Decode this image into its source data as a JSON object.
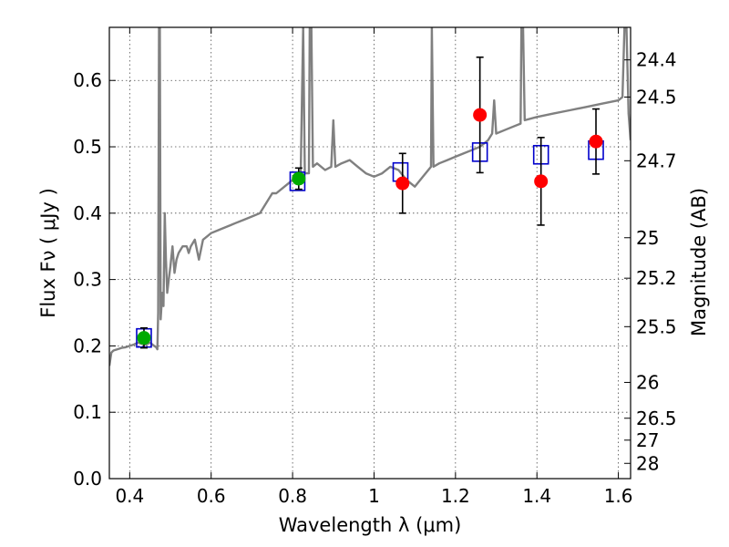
{
  "chart_data": {
    "type": "scatter",
    "xlabel": "Wavelength  λ (μm)",
    "ylabel_left": "Flux  Fν  ( μJy )",
    "ylabel_right": "Magnitude (AB)",
    "xlim": [
      0.35,
      1.63
    ],
    "ylim": [
      0.0,
      0.68
    ],
    "grid": true,
    "x_ticks": [
      {
        "value": 0.4,
        "label": "0.4"
      },
      {
        "value": 0.6,
        "label": "0.6"
      },
      {
        "value": 0.8,
        "label": "0.8"
      },
      {
        "value": 1.0,
        "label": "1"
      },
      {
        "value": 1.2,
        "label": "1.2"
      },
      {
        "value": 1.4,
        "label": "1.4"
      },
      {
        "value": 1.6,
        "label": "1.6"
      }
    ],
    "y_ticks": [
      {
        "value": 0.0,
        "label": "0.0"
      },
      {
        "value": 0.1,
        "label": "0.1"
      },
      {
        "value": 0.2,
        "label": "0.2"
      },
      {
        "value": 0.3,
        "label": "0.3"
      },
      {
        "value": 0.4,
        "label": "0.4"
      },
      {
        "value": 0.5,
        "label": "0.5"
      },
      {
        "value": 0.6,
        "label": "0.6"
      }
    ],
    "right_ticks": [
      {
        "flux": 0.631,
        "label": "24.4"
      },
      {
        "flux": 0.575,
        "label": "24.5"
      },
      {
        "flux": 0.479,
        "label": "24.7"
      },
      {
        "flux": 0.363,
        "label": "25"
      },
      {
        "flux": 0.302,
        "label": "25.2"
      },
      {
        "flux": 0.229,
        "label": "25.5"
      },
      {
        "flux": 0.145,
        "label": "26"
      },
      {
        "flux": 0.091,
        "label": "26.5"
      },
      {
        "flux": 0.058,
        "label": "27"
      },
      {
        "flux": 0.023,
        "label": "28"
      }
    ],
    "colors": {
      "spectrum": "#808080",
      "red_points": "#ff0000",
      "green_points": "#00aa00",
      "model_squares": "#0000cc",
      "errorbars": "#000000"
    },
    "spectrum": [
      [
        0.35,
        0.17
      ],
      [
        0.355,
        0.19
      ],
      [
        0.36,
        0.193
      ],
      [
        0.37,
        0.195
      ],
      [
        0.38,
        0.197
      ],
      [
        0.39,
        0.198
      ],
      [
        0.4,
        0.2
      ],
      [
        0.41,
        0.202
      ],
      [
        0.42,
        0.205
      ],
      [
        0.43,
        0.203
      ],
      [
        0.44,
        0.202
      ],
      [
        0.45,
        0.205
      ],
      [
        0.46,
        0.2
      ],
      [
        0.465,
        0.198
      ],
      [
        0.468,
        0.195
      ],
      [
        0.47,
        0.25
      ],
      [
        0.472,
        0.68
      ],
      [
        0.474,
        0.68
      ],
      [
        0.476,
        0.24
      ],
      [
        0.478,
        0.26
      ],
      [
        0.48,
        0.28
      ],
      [
        0.483,
        0.26
      ],
      [
        0.486,
        0.4
      ],
      [
        0.489,
        0.33
      ],
      [
        0.492,
        0.28
      ],
      [
        0.496,
        0.3
      ],
      [
        0.5,
        0.32
      ],
      [
        0.505,
        0.35
      ],
      [
        0.51,
        0.31
      ],
      [
        0.515,
        0.33
      ],
      [
        0.52,
        0.34
      ],
      [
        0.53,
        0.35
      ],
      [
        0.54,
        0.35
      ],
      [
        0.545,
        0.34
      ],
      [
        0.55,
        0.35
      ],
      [
        0.56,
        0.36
      ],
      [
        0.57,
        0.33
      ],
      [
        0.58,
        0.36
      ],
      [
        0.59,
        0.365
      ],
      [
        0.6,
        0.37
      ],
      [
        0.62,
        0.375
      ],
      [
        0.64,
        0.38
      ],
      [
        0.66,
        0.385
      ],
      [
        0.68,
        0.39
      ],
      [
        0.7,
        0.395
      ],
      [
        0.72,
        0.4
      ],
      [
        0.74,
        0.42
      ],
      [
        0.75,
        0.43
      ],
      [
        0.76,
        0.43
      ],
      [
        0.78,
        0.44
      ],
      [
        0.8,
        0.45
      ],
      [
        0.81,
        0.455
      ],
      [
        0.82,
        0.46
      ],
      [
        0.826,
        0.68
      ],
      [
        0.83,
        0.46
      ],
      [
        0.84,
        0.46
      ],
      [
        0.842,
        0.68
      ],
      [
        0.846,
        0.68
      ],
      [
        0.85,
        0.47
      ],
      [
        0.86,
        0.475
      ],
      [
        0.88,
        0.465
      ],
      [
        0.895,
        0.47
      ],
      [
        0.9,
        0.54
      ],
      [
        0.905,
        0.47
      ],
      [
        0.92,
        0.475
      ],
      [
        0.94,
        0.48
      ],
      [
        0.96,
        0.47
      ],
      [
        0.98,
        0.46
      ],
      [
        1.0,
        0.455
      ],
      [
        1.02,
        0.46
      ],
      [
        1.04,
        0.47
      ],
      [
        1.06,
        0.465
      ],
      [
        1.08,
        0.45
      ],
      [
        1.1,
        0.44
      ],
      [
        1.12,
        0.455
      ],
      [
        1.14,
        0.47
      ],
      [
        1.142,
        0.68
      ],
      [
        1.146,
        0.47
      ],
      [
        1.16,
        0.475
      ],
      [
        1.18,
        0.48
      ],
      [
        1.2,
        0.485
      ],
      [
        1.22,
        0.49
      ],
      [
        1.24,
        0.495
      ],
      [
        1.26,
        0.5
      ],
      [
        1.28,
        0.51
      ],
      [
        1.29,
        0.52
      ],
      [
        1.295,
        0.57
      ],
      [
        1.3,
        0.52
      ],
      [
        1.32,
        0.525
      ],
      [
        1.34,
        0.53
      ],
      [
        1.36,
        0.535
      ],
      [
        1.362,
        0.68
      ],
      [
        1.366,
        0.68
      ],
      [
        1.37,
        0.54
      ],
      [
        1.4,
        0.545
      ],
      [
        1.44,
        0.55
      ],
      [
        1.48,
        0.555
      ],
      [
        1.52,
        0.56
      ],
      [
        1.56,
        0.565
      ],
      [
        1.6,
        0.57
      ],
      [
        1.61,
        0.575
      ],
      [
        1.615,
        0.68
      ],
      [
        1.62,
        0.68
      ],
      [
        1.625,
        0.55
      ],
      [
        1.63,
        0.51
      ]
    ],
    "red_points": [
      {
        "x": 1.07,
        "y": 0.445,
        "err": 0.045
      },
      {
        "x": 1.26,
        "y": 0.548,
        "err": 0.087
      },
      {
        "x": 1.41,
        "y": 0.448,
        "err": 0.066
      },
      {
        "x": 1.545,
        "y": 0.508,
        "err": 0.049
      }
    ],
    "green_points": [
      {
        "x": 0.435,
        "y": 0.212,
        "err": 0.015
      },
      {
        "x": 0.815,
        "y": 0.452,
        "err": 0.016
      }
    ],
    "model_squares": [
      {
        "x": 0.435,
        "y": 0.212
      },
      {
        "x": 0.812,
        "y": 0.448
      },
      {
        "x": 1.065,
        "y": 0.462
      },
      {
        "x": 1.26,
        "y": 0.492
      },
      {
        "x": 1.41,
        "y": 0.488
      },
      {
        "x": 1.545,
        "y": 0.495
      }
    ]
  }
}
